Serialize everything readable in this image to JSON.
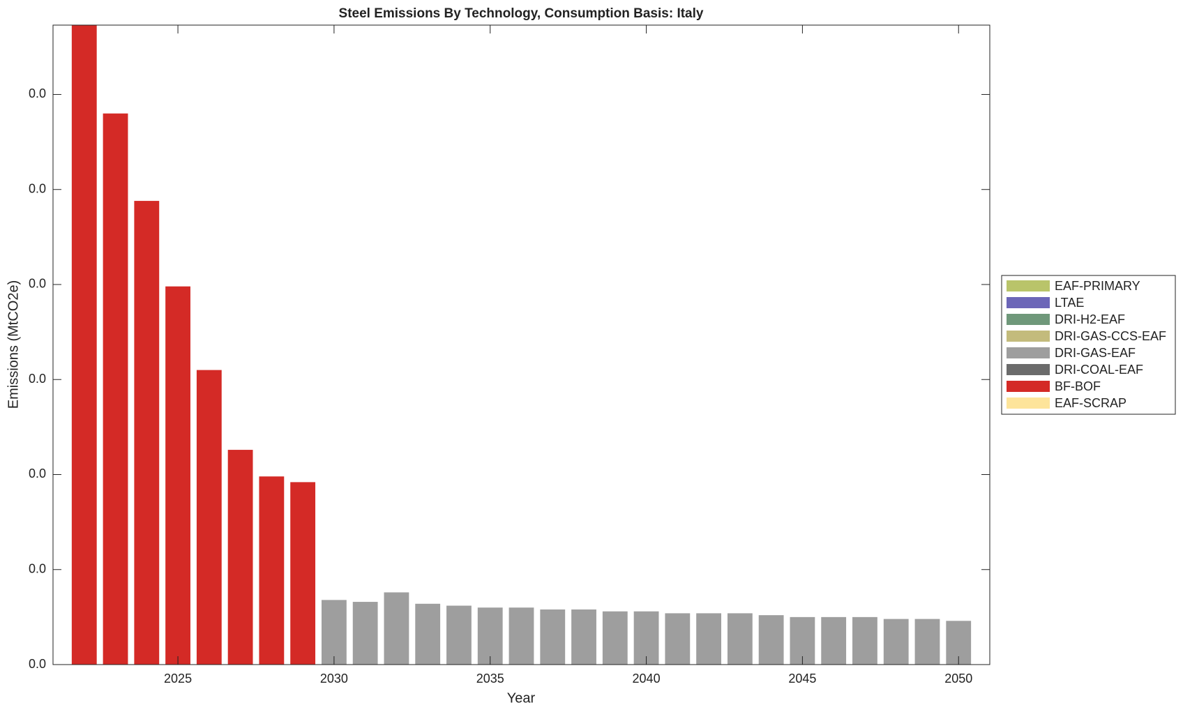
{
  "chart_data": {
    "type": "bar",
    "stacked": true,
    "title": "Steel Emissions By Technology, Consumption Basis: Italy",
    "x_label": "Year",
    "y_label": "Emissions (MtCO2e)",
    "x": [
      2022,
      2023,
      2024,
      2025,
      2026,
      2027,
      2028,
      2029,
      2030,
      2031,
      2032,
      2033,
      2034,
      2035,
      2036,
      2037,
      2038,
      2039,
      2040,
      2041,
      2042,
      2043,
      2044,
      2045,
      2046,
      2047,
      2048,
      2049,
      2050
    ],
    "xlim": [
      2021,
      2051
    ],
    "xticks": [
      2025,
      2030,
      2035,
      2040,
      2045,
      2050
    ],
    "ylim": [
      0,
      0.03365
    ],
    "yticks": [
      {
        "value": 0,
        "label": "0.0"
      },
      {
        "value": 0.005,
        "label": "0.0"
      },
      {
        "value": 0.01,
        "label": "0.0"
      },
      {
        "value": 0.015,
        "label": "0.0"
      },
      {
        "value": 0.02,
        "label": "0.0"
      },
      {
        "value": 0.025,
        "label": "0.0"
      },
      {
        "value": 0.03,
        "label": "0.0"
      }
    ],
    "legend": "outside-right",
    "series": [
      {
        "name": "EAF-PRIMARY",
        "color": "#b9c46a",
        "values": [
          0,
          0,
          0,
          0,
          0,
          0,
          0,
          0,
          0,
          0,
          0,
          0,
          0,
          0,
          0,
          0,
          0,
          0,
          0,
          0,
          0,
          0,
          0,
          0,
          0,
          0,
          0,
          0,
          0
        ]
      },
      {
        "name": "LTAE",
        "color": "#6c66b8",
        "values": [
          0,
          0,
          0,
          0,
          0,
          0,
          0,
          0,
          0,
          0,
          0,
          0,
          0,
          0,
          0,
          0,
          0,
          0,
          0,
          0,
          0,
          0,
          0,
          0,
          0,
          0,
          0,
          0,
          0
        ]
      },
      {
        "name": "DRI-H2-EAF",
        "color": "#6f987a",
        "values": [
          0,
          0,
          0,
          0,
          0,
          0,
          0,
          0,
          0,
          0,
          0,
          0,
          0,
          0,
          0,
          0,
          0,
          0,
          0,
          0,
          0,
          0,
          0,
          0,
          0,
          0,
          0,
          0,
          0
        ]
      },
      {
        "name": "DRI-GAS-CCS-EAF",
        "color": "#c3bb7c",
        "values": [
          0,
          0,
          0,
          0,
          0,
          0,
          0,
          0,
          0,
          0,
          0,
          0,
          0,
          0,
          0,
          0,
          0,
          0,
          0,
          0,
          0,
          0,
          0,
          0,
          0,
          0,
          0,
          0,
          0
        ]
      },
      {
        "name": "DRI-GAS-EAF",
        "color": "#9e9e9e",
        "values": [
          0,
          0,
          0,
          0,
          0,
          0,
          0,
          0,
          0.0034,
          0.0033,
          0.0038,
          0.0032,
          0.0031,
          0.003,
          0.003,
          0.0029,
          0.0029,
          0.0028,
          0.0028,
          0.0027,
          0.0027,
          0.0027,
          0.0026,
          0.0025,
          0.0025,
          0.0025,
          0.0024,
          0.0024,
          0.0023
        ]
      },
      {
        "name": "DRI-COAL-EAF",
        "color": "#6b6b6b",
        "values": [
          0,
          0,
          0,
          0,
          0,
          0,
          0,
          0,
          0,
          0,
          0,
          0,
          0,
          0,
          0,
          0,
          0,
          0,
          0,
          0,
          0,
          0,
          0,
          0,
          0,
          0,
          0,
          0,
          0
        ]
      },
      {
        "name": "BF-BOF",
        "color": "#d42a26",
        "values": [
          0.034,
          0.029,
          0.0244,
          0.0199,
          0.0155,
          0.0113,
          0.0099,
          0.0096,
          0,
          0,
          0,
          0,
          0,
          0,
          0,
          0,
          0,
          0,
          0,
          0,
          0,
          0,
          0,
          0,
          0,
          0,
          0,
          0,
          0
        ]
      },
      {
        "name": "EAF-SCRAP",
        "color": "#fde49a",
        "values": [
          0,
          0,
          0,
          0,
          0,
          0,
          0,
          0,
          0,
          0,
          0,
          0,
          0,
          0,
          0,
          0,
          0,
          0,
          0,
          0,
          0,
          0,
          0,
          0,
          0,
          0,
          0,
          0,
          0
        ]
      }
    ]
  }
}
